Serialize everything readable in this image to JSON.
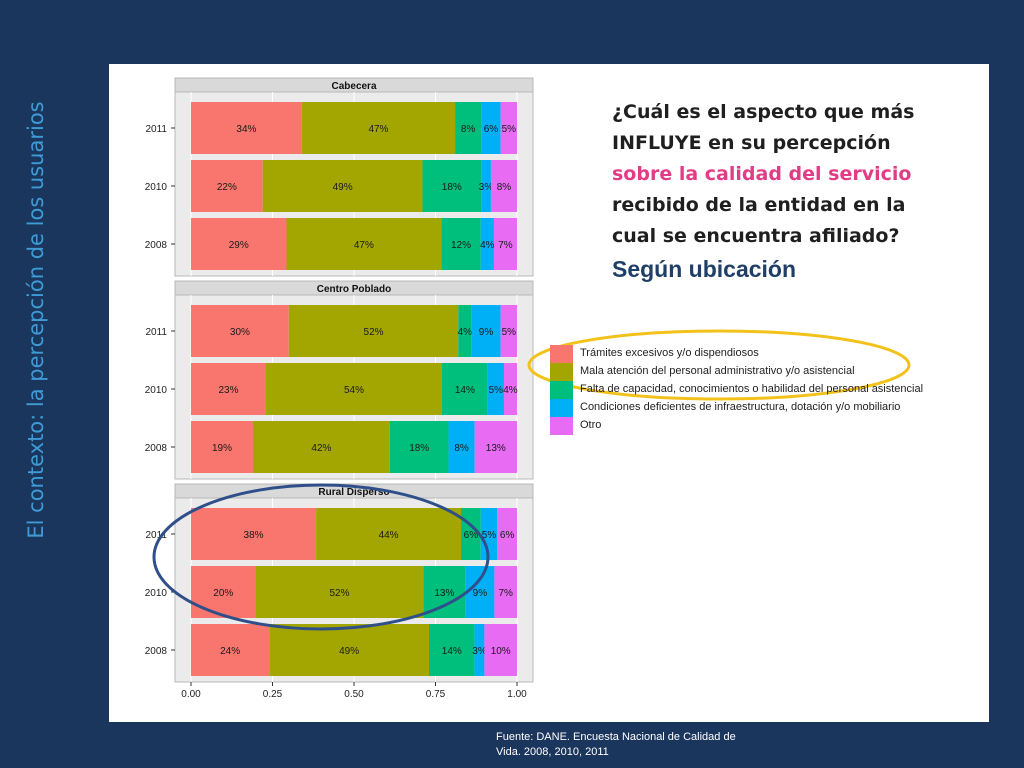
{
  "slide": {
    "side_title": "El contexto: la percepción de los usuarios",
    "question": {
      "part1": "¿Cuál es el aspecto que más INFLUYE en su percepción",
      "highlight": "sobre la calidad del servicio",
      "part2": "recibido de la entidad en la cual se encuentra afiliado?",
      "subtitle": "Según ubicación"
    },
    "source": "Fuente: DANE. Encuesta Nacional de Calidad de Vida. 2008, 2010, 2011",
    "annotation_colors": {
      "legend_ellipse": "#f2c21b",
      "rural_ellipse": "#2f4f8a"
    }
  },
  "chart_data": {
    "type": "bar",
    "orientation": "horizontal",
    "stacked": true,
    "xlim": [
      0,
      1
    ],
    "x_ticks": [
      "0.00",
      "0.25",
      "0.50",
      "0.75",
      "1.00"
    ],
    "categories": [
      "2011",
      "2010",
      "2008"
    ],
    "colors": [
      "#f8766d",
      "#a3a500",
      "#00bf7d",
      "#00b0f6",
      "#e76bf3"
    ],
    "legend": [
      "Trámites excesivos y/o dispendiosos",
      "Mala atención del personal administrativo y/o asistencial",
      "Falta de capacidad, conocimientos o habilidad del personal asistencial",
      "Condiciones deficientes de infraestructura, dotación y/o mobiliario",
      "Otro"
    ],
    "panels": [
      {
        "title": "Cabecera",
        "rows": [
          {
            "year": "2011",
            "values": [
              34,
              47,
              8,
              6,
              5
            ],
            "labels": [
              "34%",
              "47%",
              "8%",
              "6%",
              "5%"
            ]
          },
          {
            "year": "2010",
            "values": [
              22,
              49,
              18,
              3,
              8
            ],
            "labels": [
              "22%",
              "49%",
              "18%",
              "3%",
              "8%"
            ]
          },
          {
            "year": "2008",
            "values": [
              29,
              47,
              12,
              4,
              7
            ],
            "labels": [
              "29%",
              "47%",
              "12%",
              "4%",
              "7%"
            ]
          }
        ]
      },
      {
        "title": "Centro Poblado",
        "rows": [
          {
            "year": "2011",
            "values": [
              30,
              52,
              4,
              9,
              5
            ],
            "labels": [
              "30%",
              "52%",
              "4%",
              "9%",
              "5%"
            ]
          },
          {
            "year": "2010",
            "values": [
              23,
              54,
              14,
              5,
              4
            ],
            "labels": [
              "23%",
              "54%",
              "14%",
              "5%",
              "4%"
            ]
          },
          {
            "year": "2008",
            "values": [
              19,
              42,
              18,
              8,
              13
            ],
            "labels": [
              "19%",
              "42%",
              "18%",
              "8%",
              "13%"
            ]
          }
        ]
      },
      {
        "title": "Rural Disperso",
        "rows": [
          {
            "year": "2011",
            "values": [
              38,
              44,
              6,
              5,
              6
            ],
            "labels": [
              "38%",
              "44%",
              "6%",
              "5%",
              "6%"
            ]
          },
          {
            "year": "2010",
            "values": [
              20,
              52,
              13,
              9,
              7
            ],
            "labels": [
              "20%",
              "52%",
              "13%",
              "9%",
              "7%"
            ]
          },
          {
            "year": "2008",
            "values": [
              24,
              49,
              14,
              3,
              10
            ],
            "labels": [
              "24%",
              "49%",
              "14%",
              "3%",
              "10%"
            ]
          }
        ]
      }
    ]
  }
}
